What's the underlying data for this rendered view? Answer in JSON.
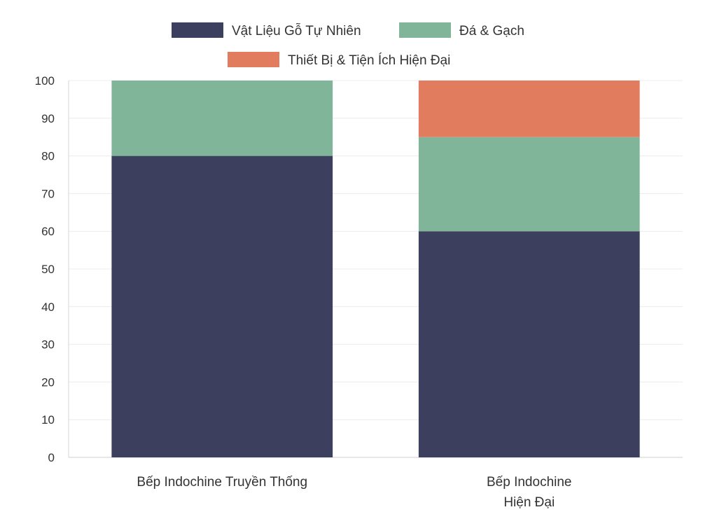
{
  "chart_data": {
    "type": "bar",
    "stacked": true,
    "categories": [
      "Bếp Indochine Truyền Thống",
      "Bếp Indochine Hiện Đại"
    ],
    "category_lines": [
      [
        "Bếp Indochine Truyền Thống"
      ],
      [
        "Bếp Indochine",
        "Hiện Đại"
      ]
    ],
    "series": [
      {
        "name": "Vật Liệu Gỗ Tự Nhiên",
        "values": [
          80,
          60
        ],
        "color": "#3d3f5e"
      },
      {
        "name": "Đá & Gạch",
        "values": [
          20,
          25
        ],
        "color": "#80b59a"
      },
      {
        "name": "Thiết Bị & Tiện Ích Hiện Đại",
        "values": [
          0,
          15
        ],
        "color": "#e27c5f"
      }
    ],
    "title": "",
    "xlabel": "",
    "ylabel": "",
    "ylim": [
      0,
      100
    ],
    "yticks": [
      0,
      10,
      20,
      30,
      40,
      50,
      60,
      70,
      80,
      90,
      100
    ],
    "grid": true,
    "legend_position": "top"
  }
}
